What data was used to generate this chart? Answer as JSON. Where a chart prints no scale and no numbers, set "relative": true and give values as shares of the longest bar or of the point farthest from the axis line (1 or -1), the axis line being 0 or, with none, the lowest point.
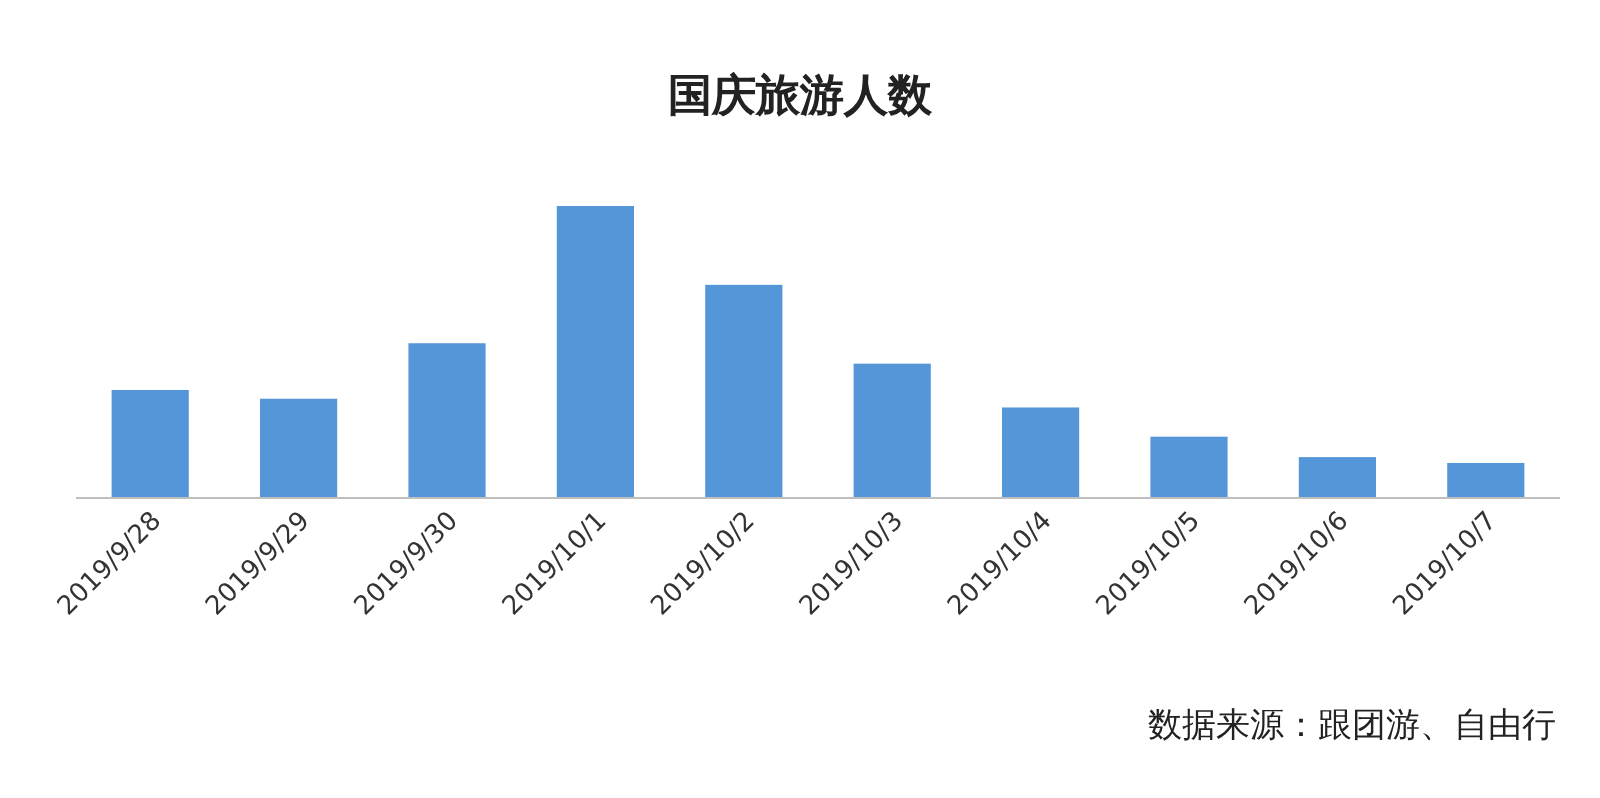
{
  "chart_data": {
    "type": "bar",
    "title": "国庆旅游人数",
    "relative": true,
    "categories": [
      "2019/9/28",
      "2019/9/29",
      "2019/9/30",
      "2019/10/1",
      "2019/10/2",
      "2019/10/3",
      "2019/10/4",
      "2019/10/5",
      "2019/10/6",
      "2019/10/7"
    ],
    "values": [
      0.37,
      0.34,
      0.53,
      1,
      0.73,
      0.46,
      0.31,
      0.21,
      0.14,
      0.12
    ],
    "color": "#5496d8",
    "annotations": [
      "数据来源：跟团游、自由行"
    ]
  }
}
